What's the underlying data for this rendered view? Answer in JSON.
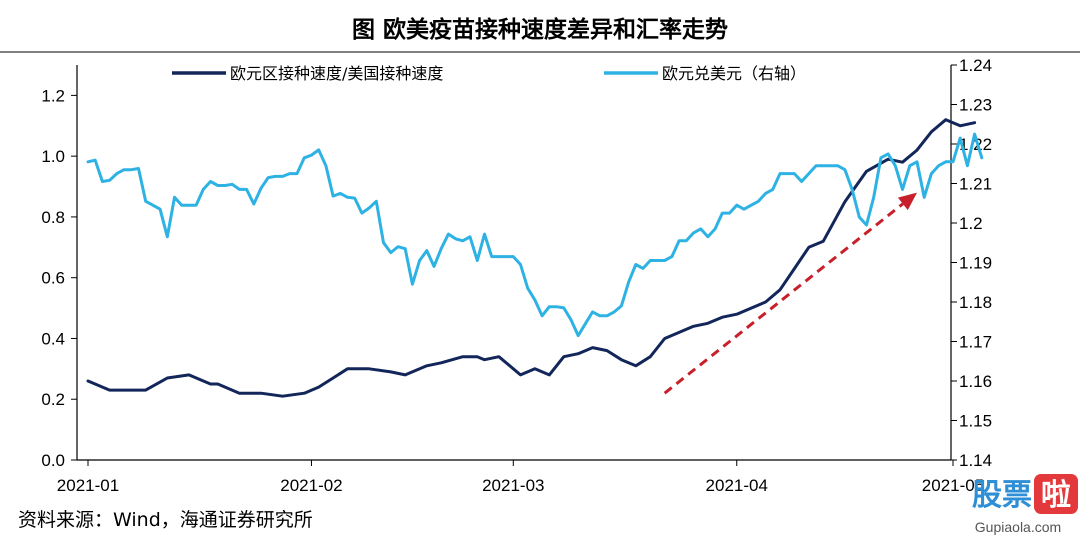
{
  "title": "图  欧美疫苗接种速度差异和汇率走势",
  "source": "资料来源：Wind，海通证券研究所",
  "watermark": {
    "text1": "股票",
    "text2": "啦",
    "url": "Gupiaola.com"
  },
  "colors": {
    "series_left": "#13265a",
    "series_right": "#2eb2e4",
    "arrow": "#c8202a"
  },
  "chart_data": {
    "type": "line",
    "x_tick_labels": [
      "2021-01",
      "2021-02",
      "2021-03",
      "2021-04",
      "2021-05"
    ],
    "y_left": {
      "ticks": [
        "0.0",
        "0.2",
        "0.4",
        "0.6",
        "0.8",
        "1.0",
        "1.2"
      ],
      "range": [
        0,
        1.3
      ]
    },
    "y_right": {
      "ticks": [
        "1.14",
        "1.15",
        "1.16",
        "1.17",
        "1.18",
        "1.19",
        "1.2",
        "1.21",
        "1.22",
        "1.23",
        "1.24"
      ],
      "range": [
        1.14,
        1.24
      ]
    },
    "grid": false,
    "legend_position": "top",
    "series": [
      {
        "name": "欧元区接种速度/美国接种速度",
        "axis": "left",
        "x": [
          "2021-01-01",
          "2021-01-04",
          "2021-01-06",
          "2021-01-09",
          "2021-01-12",
          "2021-01-15",
          "2021-01-18",
          "2021-01-19",
          "2021-01-22",
          "2021-01-25",
          "2021-01-28",
          "2021-01-31",
          "2021-02-02",
          "2021-02-04",
          "2021-02-06",
          "2021-02-09",
          "2021-02-12",
          "2021-02-14",
          "2021-02-17",
          "2021-02-19",
          "2021-02-22",
          "2021-02-24",
          "2021-02-25",
          "2021-02-27",
          "2021-03-01",
          "2021-03-02",
          "2021-03-04",
          "2021-03-06",
          "2021-03-08",
          "2021-03-10",
          "2021-03-12",
          "2021-03-14",
          "2021-03-16",
          "2021-03-18",
          "2021-03-20",
          "2021-03-22",
          "2021-03-24",
          "2021-03-26",
          "2021-03-28",
          "2021-03-30",
          "2021-04-01",
          "2021-04-03",
          "2021-04-05",
          "2021-04-07",
          "2021-04-09",
          "2021-04-11",
          "2021-04-13",
          "2021-04-16",
          "2021-04-19",
          "2021-04-22",
          "2021-04-24",
          "2021-04-26",
          "2021-04-28",
          "2021-04-30",
          "2021-05-02",
          "2021-05-04"
        ],
        "y": [
          0.26,
          0.23,
          0.23,
          0.23,
          0.27,
          0.28,
          0.25,
          0.25,
          0.22,
          0.22,
          0.21,
          0.22,
          0.24,
          0.27,
          0.3,
          0.3,
          0.29,
          0.28,
          0.31,
          0.32,
          0.34,
          0.34,
          0.33,
          0.34,
          0.3,
          0.28,
          0.3,
          0.28,
          0.34,
          0.35,
          0.37,
          0.36,
          0.33,
          0.31,
          0.34,
          0.4,
          0.42,
          0.44,
          0.45,
          0.47,
          0.48,
          0.5,
          0.52,
          0.56,
          0.63,
          0.7,
          0.72,
          0.85,
          0.95,
          0.99,
          0.98,
          1.02,
          1.08,
          1.12,
          1.1,
          1.11
        ]
      },
      {
        "name": "欧元兑美元（右轴）",
        "axis": "right",
        "x": [
          "2021-01-01",
          "2021-01-02",
          "2021-01-03",
          "2021-01-04",
          "2021-01-05",
          "2021-01-06",
          "2021-01-07",
          "2021-01-08",
          "2021-01-09",
          "2021-01-10",
          "2021-01-11",
          "2021-01-12",
          "2021-01-13",
          "2021-01-14",
          "2021-01-15",
          "2021-01-16",
          "2021-01-17",
          "2021-01-18",
          "2021-01-19",
          "2021-01-20",
          "2021-01-21",
          "2021-01-22",
          "2021-01-23",
          "2021-01-24",
          "2021-01-25",
          "2021-01-26",
          "2021-01-27",
          "2021-01-28",
          "2021-01-29",
          "2021-01-30",
          "2021-01-31",
          "2021-02-01",
          "2021-02-02",
          "2021-02-03",
          "2021-02-04",
          "2021-02-05",
          "2021-02-06",
          "2021-02-07",
          "2021-02-08",
          "2021-02-09",
          "2021-02-10",
          "2021-02-11",
          "2021-02-12",
          "2021-02-13",
          "2021-02-14",
          "2021-02-15",
          "2021-02-16",
          "2021-02-17",
          "2021-02-18",
          "2021-02-19",
          "2021-02-20",
          "2021-02-21",
          "2021-02-22",
          "2021-02-23",
          "2021-02-24",
          "2021-02-25",
          "2021-02-26",
          "2021-02-27",
          "2021-02-28",
          "2021-03-01",
          "2021-03-02",
          "2021-03-03",
          "2021-03-04",
          "2021-03-05",
          "2021-03-06",
          "2021-03-07",
          "2021-03-08",
          "2021-03-09",
          "2021-03-10",
          "2021-03-11",
          "2021-03-12",
          "2021-03-13",
          "2021-03-14",
          "2021-03-15",
          "2021-03-16",
          "2021-03-17",
          "2021-03-18",
          "2021-03-19",
          "2021-03-20",
          "2021-03-21",
          "2021-03-22",
          "2021-03-23",
          "2021-03-24",
          "2021-03-25",
          "2021-03-26",
          "2021-03-27",
          "2021-03-28",
          "2021-03-29",
          "2021-03-30",
          "2021-03-31",
          "2021-04-01",
          "2021-04-02",
          "2021-04-03",
          "2021-04-04",
          "2021-04-05",
          "2021-04-06",
          "2021-04-07",
          "2021-04-08",
          "2021-04-09",
          "2021-04-10",
          "2021-04-11",
          "2021-04-12",
          "2021-04-13",
          "2021-04-14",
          "2021-04-15",
          "2021-04-16",
          "2021-04-17",
          "2021-04-18",
          "2021-04-19",
          "2021-04-20",
          "2021-04-21",
          "2021-04-22",
          "2021-04-23",
          "2021-04-24",
          "2021-04-25",
          "2021-04-26",
          "2021-04-27",
          "2021-04-28",
          "2021-04-29",
          "2021-04-30",
          "2021-05-01",
          "2021-05-02",
          "2021-05-03",
          "2021-05-04",
          "2021-05-05"
        ],
        "y": [
          1.2155,
          1.2159,
          1.2105,
          1.2108,
          1.2125,
          1.2135,
          1.2135,
          1.2138,
          1.2055,
          1.2045,
          1.2035,
          1.1965,
          1.2065,
          1.2045,
          1.2045,
          1.2045,
          1.2085,
          1.2105,
          1.2095,
          1.2095,
          1.2098,
          1.2085,
          1.2085,
          1.2048,
          1.2088,
          1.2115,
          1.2118,
          1.2118,
          1.2125,
          1.2125,
          1.2165,
          1.2172,
          1.2185,
          1.2145,
          1.2068,
          1.2075,
          1.2065,
          1.2063,
          1.2025,
          1.2038,
          1.2055,
          1.195,
          1.1925,
          1.194,
          1.1935,
          1.1845,
          1.1905,
          1.193,
          1.189,
          1.1935,
          1.1972,
          1.196,
          1.1955,
          1.1965,
          1.1905,
          1.1972,
          1.1915,
          1.1915,
          1.1915,
          1.1915,
          1.1895,
          1.1835,
          1.1805,
          1.1765,
          1.1788,
          1.1788,
          1.1785,
          1.1755,
          1.1715,
          1.1745,
          1.1775,
          1.1765,
          1.1765,
          1.1775,
          1.179,
          1.185,
          1.1895,
          1.1885,
          1.1905,
          1.1905,
          1.1905,
          1.1915,
          1.1955,
          1.1955,
          1.1975,
          1.1985,
          1.1965,
          1.1985,
          1.2025,
          1.2025,
          1.2045,
          1.2035,
          1.2045,
          1.2055,
          1.2075,
          1.2085,
          1.2125,
          1.2125,
          1.2125,
          1.2105,
          1.2125,
          1.2145,
          1.2145,
          1.2145,
          1.2145,
          1.2135,
          1.2085,
          1.2015,
          1.1995,
          1.2065,
          1.2165,
          1.2175,
          1.2145,
          1.2085,
          1.2145,
          1.2155,
          1.2065,
          1.2125,
          1.2145,
          1.2155,
          1.2155,
          1.2215,
          1.2145,
          1.2225,
          1.2165
        ]
      }
    ],
    "arrow": {
      "from": [
        "2021-03-22",
        0.22
      ],
      "to": [
        "2021-04-26",
        0.88
      ]
    }
  }
}
